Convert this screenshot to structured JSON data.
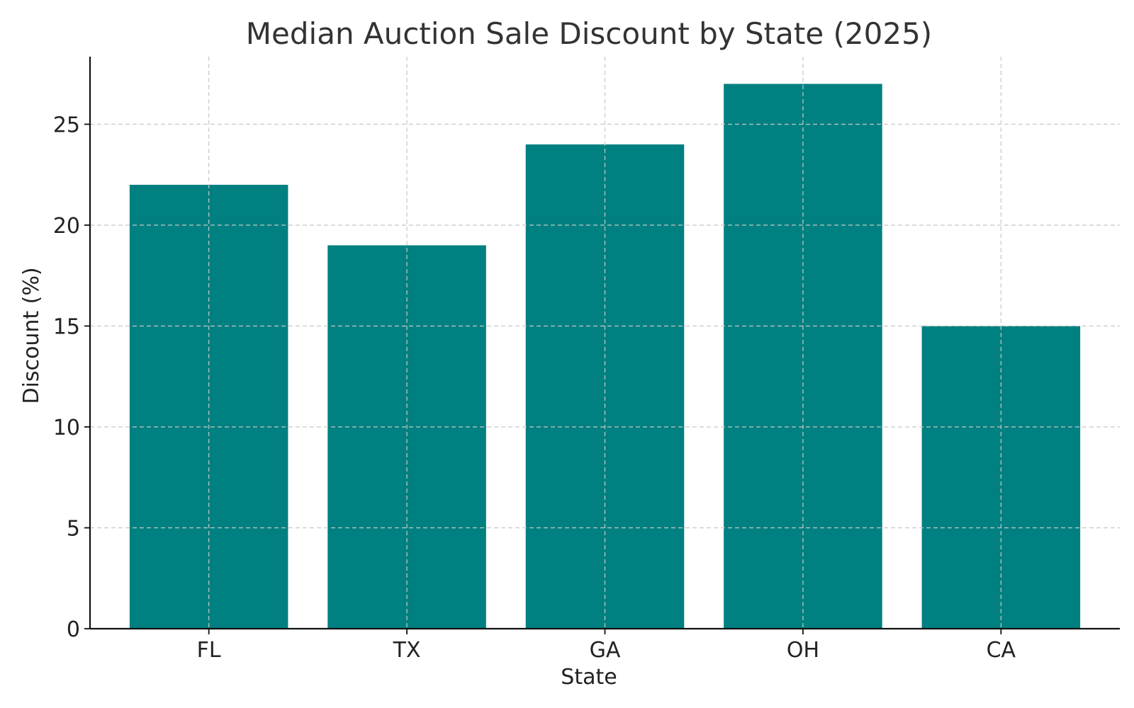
{
  "chart_data": {
    "type": "bar",
    "title": "Median Auction Sale Discount by State (2025)",
    "xlabel": "State",
    "ylabel": "Discount (%)",
    "categories": [
      "FL",
      "TX",
      "GA",
      "OH",
      "CA"
    ],
    "values": [
      22,
      19,
      24,
      27,
      15
    ],
    "ylim": [
      0,
      28.35
    ],
    "yticks": [
      0,
      5,
      10,
      15,
      20,
      25
    ],
    "grid": true,
    "bar_color": "#008080"
  }
}
